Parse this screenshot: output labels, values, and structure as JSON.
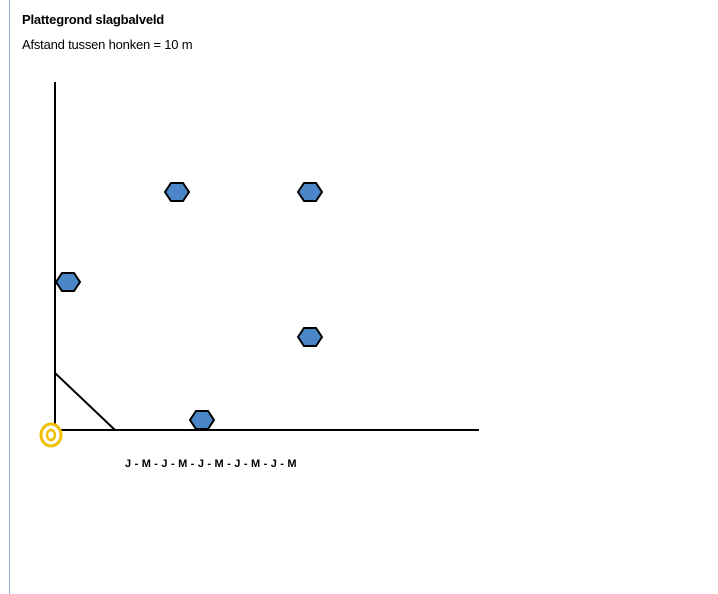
{
  "heading": {
    "title": "Plattegrond slagbalveld",
    "subtitle": "Afstand tussen honken = 10 m"
  },
  "diagram": {
    "batting_order_label": "J - M - J - M - J - M - J - M - J - M",
    "colors": {
      "base_fill": "#4a86c8",
      "base_stroke": "#000000",
      "home_ring": "#f0c000",
      "line": "#000000",
      "page_rule": "#8fb0e0"
    }
  }
}
